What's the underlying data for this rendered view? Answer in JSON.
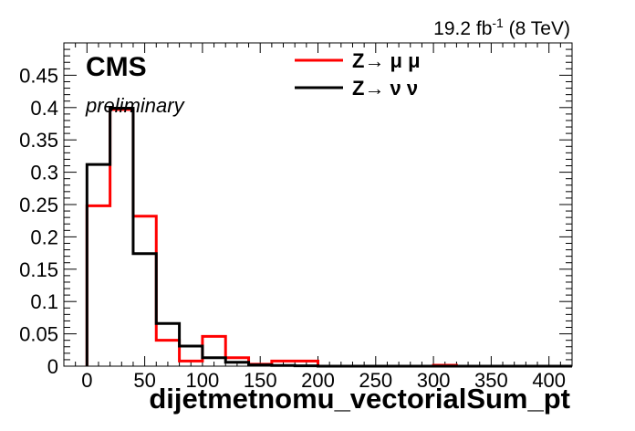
{
  "chart_data": {
    "type": "step-histogram",
    "xlabel": "dijetmetnomu_vectorialSum_pt",
    "ylabel": "",
    "xlim": [
      -20,
      420
    ],
    "ylim": [
      0,
      0.5
    ],
    "xticks": [
      0,
      50,
      100,
      150,
      200,
      250,
      300,
      350,
      400
    ],
    "yticks": [
      0,
      0.05,
      0.1,
      0.15,
      0.2,
      0.25,
      0.3,
      0.35,
      0.4,
      0.45
    ],
    "bin_edges": [
      0,
      20,
      40,
      60,
      80,
      100,
      120,
      140,
      160,
      180,
      200,
      220,
      240,
      260,
      280,
      300,
      320,
      340,
      360,
      380,
      400,
      420
    ],
    "series": [
      {
        "name": "Z→ μ μ",
        "color": "#ff0000",
        "values": [
          0.248,
          0.397,
          0.232,
          0.04,
          0.008,
          0.046,
          0.013,
          0.003,
          0.008,
          0.008,
          0.0,
          0.0,
          0.0,
          0.0,
          0.0,
          0.0015,
          0.0,
          0.0,
          0.0,
          0.0,
          0.0
        ]
      },
      {
        "name": "Z→ ν ν",
        "color": "#000000",
        "values": [
          0.312,
          0.399,
          0.174,
          0.066,
          0.031,
          0.013,
          0.006,
          0.002,
          0.001,
          0.0005,
          0.0,
          0.0,
          0.0,
          0.0,
          0.0,
          0.0,
          0.0,
          0.0,
          0.0,
          0.0,
          0.0
        ]
      }
    ],
    "legend_position": "top-right",
    "grid": false
  },
  "annotations": {
    "experiment": "CMS",
    "status": "preliminary",
    "lumi_value": "19.2 fb",
    "lumi_exponent": "-1",
    "lumi_energy": " (8 TeV)"
  }
}
